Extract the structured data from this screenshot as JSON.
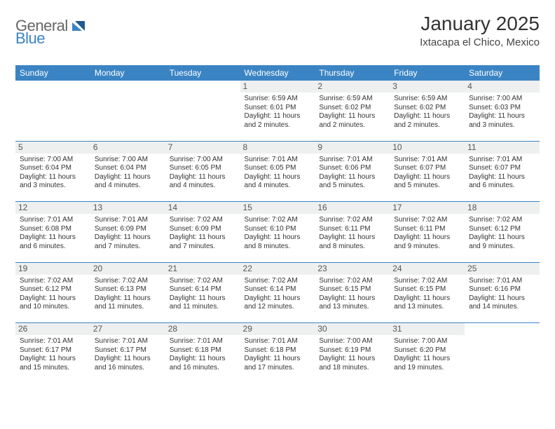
{
  "brand": {
    "first": "General",
    "second": "Blue"
  },
  "title": "January 2025",
  "location": "Ixtacapa el Chico, Mexico",
  "colors": {
    "header_bg": "#3b84c4",
    "header_text": "#ffffff",
    "daynum_bg": "#eef0f0",
    "body_text": "#333333",
    "logo_gray": "#666666",
    "logo_blue": "#3b84c4",
    "row_border": "#3b84c4",
    "page_bg": "#ffffff"
  },
  "day_headers": [
    "Sunday",
    "Monday",
    "Tuesday",
    "Wednesday",
    "Thursday",
    "Friday",
    "Saturday"
  ],
  "weeks": [
    [
      {
        "n": "",
        "empty": true
      },
      {
        "n": "",
        "empty": true
      },
      {
        "n": "",
        "empty": true
      },
      {
        "n": "1",
        "sunrise": "Sunrise: 6:59 AM",
        "sunset": "Sunset: 6:01 PM",
        "daylight": "Daylight: 11 hours and 2 minutes."
      },
      {
        "n": "2",
        "sunrise": "Sunrise: 6:59 AM",
        "sunset": "Sunset: 6:02 PM",
        "daylight": "Daylight: 11 hours and 2 minutes."
      },
      {
        "n": "3",
        "sunrise": "Sunrise: 6:59 AM",
        "sunset": "Sunset: 6:02 PM",
        "daylight": "Daylight: 11 hours and 2 minutes."
      },
      {
        "n": "4",
        "sunrise": "Sunrise: 7:00 AM",
        "sunset": "Sunset: 6:03 PM",
        "daylight": "Daylight: 11 hours and 3 minutes."
      }
    ],
    [
      {
        "n": "5",
        "sunrise": "Sunrise: 7:00 AM",
        "sunset": "Sunset: 6:04 PM",
        "daylight": "Daylight: 11 hours and 3 minutes."
      },
      {
        "n": "6",
        "sunrise": "Sunrise: 7:00 AM",
        "sunset": "Sunset: 6:04 PM",
        "daylight": "Daylight: 11 hours and 4 minutes."
      },
      {
        "n": "7",
        "sunrise": "Sunrise: 7:00 AM",
        "sunset": "Sunset: 6:05 PM",
        "daylight": "Daylight: 11 hours and 4 minutes."
      },
      {
        "n": "8",
        "sunrise": "Sunrise: 7:01 AM",
        "sunset": "Sunset: 6:05 PM",
        "daylight": "Daylight: 11 hours and 4 minutes."
      },
      {
        "n": "9",
        "sunrise": "Sunrise: 7:01 AM",
        "sunset": "Sunset: 6:06 PM",
        "daylight": "Daylight: 11 hours and 5 minutes."
      },
      {
        "n": "10",
        "sunrise": "Sunrise: 7:01 AM",
        "sunset": "Sunset: 6:07 PM",
        "daylight": "Daylight: 11 hours and 5 minutes."
      },
      {
        "n": "11",
        "sunrise": "Sunrise: 7:01 AM",
        "sunset": "Sunset: 6:07 PM",
        "daylight": "Daylight: 11 hours and 6 minutes."
      }
    ],
    [
      {
        "n": "12",
        "sunrise": "Sunrise: 7:01 AM",
        "sunset": "Sunset: 6:08 PM",
        "daylight": "Daylight: 11 hours and 6 minutes."
      },
      {
        "n": "13",
        "sunrise": "Sunrise: 7:01 AM",
        "sunset": "Sunset: 6:09 PM",
        "daylight": "Daylight: 11 hours and 7 minutes."
      },
      {
        "n": "14",
        "sunrise": "Sunrise: 7:02 AM",
        "sunset": "Sunset: 6:09 PM",
        "daylight": "Daylight: 11 hours and 7 minutes."
      },
      {
        "n": "15",
        "sunrise": "Sunrise: 7:02 AM",
        "sunset": "Sunset: 6:10 PM",
        "daylight": "Daylight: 11 hours and 8 minutes."
      },
      {
        "n": "16",
        "sunrise": "Sunrise: 7:02 AM",
        "sunset": "Sunset: 6:11 PM",
        "daylight": "Daylight: 11 hours and 8 minutes."
      },
      {
        "n": "17",
        "sunrise": "Sunrise: 7:02 AM",
        "sunset": "Sunset: 6:11 PM",
        "daylight": "Daylight: 11 hours and 9 minutes."
      },
      {
        "n": "18",
        "sunrise": "Sunrise: 7:02 AM",
        "sunset": "Sunset: 6:12 PM",
        "daylight": "Daylight: 11 hours and 9 minutes."
      }
    ],
    [
      {
        "n": "19",
        "sunrise": "Sunrise: 7:02 AM",
        "sunset": "Sunset: 6:12 PM",
        "daylight": "Daylight: 11 hours and 10 minutes."
      },
      {
        "n": "20",
        "sunrise": "Sunrise: 7:02 AM",
        "sunset": "Sunset: 6:13 PM",
        "daylight": "Daylight: 11 hours and 11 minutes."
      },
      {
        "n": "21",
        "sunrise": "Sunrise: 7:02 AM",
        "sunset": "Sunset: 6:14 PM",
        "daylight": "Daylight: 11 hours and 11 minutes."
      },
      {
        "n": "22",
        "sunrise": "Sunrise: 7:02 AM",
        "sunset": "Sunset: 6:14 PM",
        "daylight": "Daylight: 11 hours and 12 minutes."
      },
      {
        "n": "23",
        "sunrise": "Sunrise: 7:02 AM",
        "sunset": "Sunset: 6:15 PM",
        "daylight": "Daylight: 11 hours and 13 minutes."
      },
      {
        "n": "24",
        "sunrise": "Sunrise: 7:02 AM",
        "sunset": "Sunset: 6:15 PM",
        "daylight": "Daylight: 11 hours and 13 minutes."
      },
      {
        "n": "25",
        "sunrise": "Sunrise: 7:01 AM",
        "sunset": "Sunset: 6:16 PM",
        "daylight": "Daylight: 11 hours and 14 minutes."
      }
    ],
    [
      {
        "n": "26",
        "sunrise": "Sunrise: 7:01 AM",
        "sunset": "Sunset: 6:17 PM",
        "daylight": "Daylight: 11 hours and 15 minutes."
      },
      {
        "n": "27",
        "sunrise": "Sunrise: 7:01 AM",
        "sunset": "Sunset: 6:17 PM",
        "daylight": "Daylight: 11 hours and 16 minutes."
      },
      {
        "n": "28",
        "sunrise": "Sunrise: 7:01 AM",
        "sunset": "Sunset: 6:18 PM",
        "daylight": "Daylight: 11 hours and 16 minutes."
      },
      {
        "n": "29",
        "sunrise": "Sunrise: 7:01 AM",
        "sunset": "Sunset: 6:18 PM",
        "daylight": "Daylight: 11 hours and 17 minutes."
      },
      {
        "n": "30",
        "sunrise": "Sunrise: 7:00 AM",
        "sunset": "Sunset: 6:19 PM",
        "daylight": "Daylight: 11 hours and 18 minutes."
      },
      {
        "n": "31",
        "sunrise": "Sunrise: 7:00 AM",
        "sunset": "Sunset: 6:20 PM",
        "daylight": "Daylight: 11 hours and 19 minutes."
      },
      {
        "n": "",
        "empty": true
      }
    ]
  ]
}
